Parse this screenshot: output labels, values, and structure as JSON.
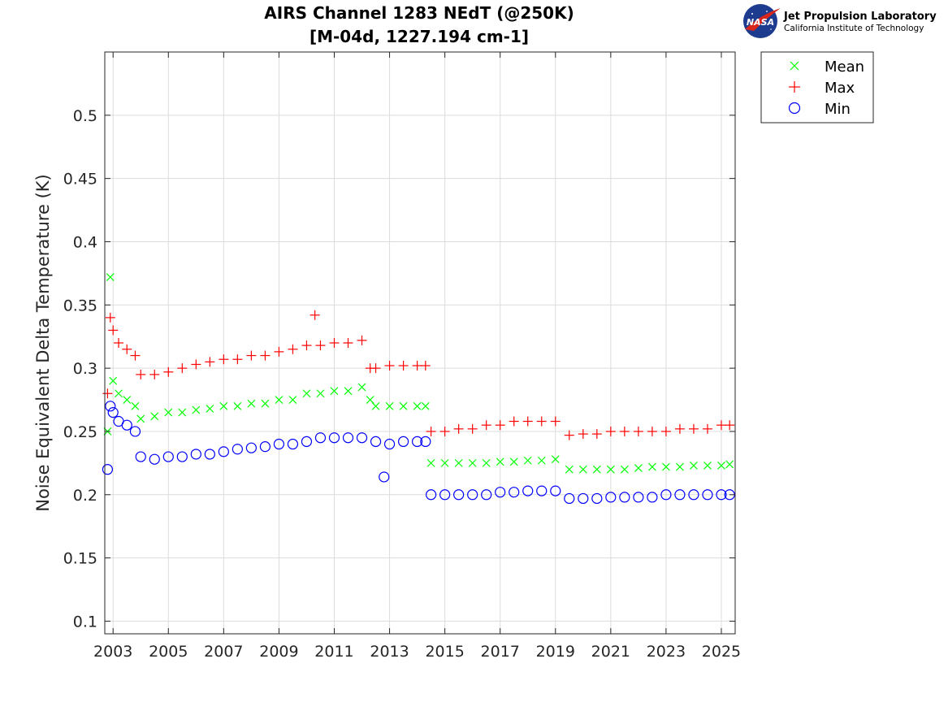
{
  "chart_data": {
    "type": "scatter",
    "title": "AIRS Channel 1283 NEdT (@250K)",
    "subtitle": "[M-04d, 1227.194 cm-1]",
    "xlabel": "",
    "ylabel": "Noise Equivalent Delta Temperature (K)",
    "xlim": [
      2002.7,
      2025.5
    ],
    "ylim": [
      0.09,
      0.55
    ],
    "x_ticks": [
      2003,
      2005,
      2007,
      2009,
      2011,
      2013,
      2015,
      2017,
      2019,
      2021,
      2023,
      2025
    ],
    "x_tick_labels": [
      "2003",
      "2005",
      "2007",
      "2009",
      "2011",
      "2013",
      "2015",
      "2017",
      "2019",
      "2021",
      "2023",
      "2025"
    ],
    "y_ticks": [
      0.1,
      0.15,
      0.2,
      0.25,
      0.3,
      0.35,
      0.4,
      0.45,
      0.5
    ],
    "y_tick_labels": [
      "0.1",
      "0.15",
      "0.2",
      "0.25",
      "0.3",
      "0.35",
      "0.4",
      "0.45",
      "0.5"
    ],
    "grid": true,
    "legend_position": "outside-top-right",
    "series": [
      {
        "name": "Mean",
        "marker": "x",
        "color": "#00ff00",
        "x": [
          2002.8,
          2002.9,
          2003.0,
          2003.2,
          2003.5,
          2003.8,
          2004.0,
          2004.5,
          2005.0,
          2005.5,
          2006.0,
          2006.5,
          2007.0,
          2007.5,
          2008.0,
          2008.5,
          2009.0,
          2009.5,
          2010.0,
          2010.5,
          2011.0,
          2011.5,
          2012.0,
          2012.3,
          2012.5,
          2013.0,
          2013.5,
          2014.0,
          2014.3,
          2014.5,
          2015.0,
          2015.5,
          2016.0,
          2016.5,
          2017.0,
          2017.5,
          2018.0,
          2018.5,
          2019.0,
          2019.5,
          2020.0,
          2020.5,
          2021.0,
          2021.5,
          2022.0,
          2022.5,
          2023.0,
          2023.5,
          2024.0,
          2024.5,
          2025.0,
          2025.3
        ],
        "y": [
          0.25,
          0.372,
          0.29,
          0.28,
          0.275,
          0.27,
          0.26,
          0.262,
          0.265,
          0.265,
          0.267,
          0.268,
          0.27,
          0.27,
          0.272,
          0.272,
          0.275,
          0.275,
          0.28,
          0.28,
          0.282,
          0.282,
          0.285,
          0.275,
          0.27,
          0.27,
          0.27,
          0.27,
          0.27,
          0.225,
          0.225,
          0.225,
          0.225,
          0.225,
          0.226,
          0.226,
          0.227,
          0.227,
          0.228,
          0.22,
          0.22,
          0.22,
          0.22,
          0.22,
          0.221,
          0.222,
          0.222,
          0.222,
          0.223,
          0.223,
          0.223,
          0.224
        ]
      },
      {
        "name": "Max",
        "marker": "+",
        "color": "#ff0000",
        "x": [
          2002.8,
          2002.9,
          2003.0,
          2003.2,
          2003.5,
          2003.8,
          2004.0,
          2004.5,
          2005.0,
          2005.5,
          2006.0,
          2006.5,
          2007.0,
          2007.5,
          2008.0,
          2008.5,
          2009.0,
          2009.5,
          2010.0,
          2010.3,
          2010.5,
          2011.0,
          2011.5,
          2012.0,
          2012.3,
          2012.5,
          2013.0,
          2013.5,
          2014.0,
          2014.3,
          2014.5,
          2015.0,
          2015.5,
          2016.0,
          2016.5,
          2017.0,
          2017.5,
          2018.0,
          2018.5,
          2019.0,
          2019.5,
          2020.0,
          2020.5,
          2021.0,
          2021.5,
          2022.0,
          2022.5,
          2023.0,
          2023.5,
          2024.0,
          2024.5,
          2025.0,
          2025.3
        ],
        "y": [
          0.28,
          0.34,
          0.33,
          0.32,
          0.315,
          0.31,
          0.295,
          0.295,
          0.297,
          0.3,
          0.303,
          0.305,
          0.307,
          0.307,
          0.31,
          0.31,
          0.313,
          0.315,
          0.318,
          0.342,
          0.318,
          0.32,
          0.32,
          0.322,
          0.3,
          0.3,
          0.302,
          0.302,
          0.302,
          0.302,
          0.25,
          0.25,
          0.252,
          0.252,
          0.255,
          0.255,
          0.258,
          0.258,
          0.258,
          0.258,
          0.247,
          0.248,
          0.248,
          0.25,
          0.25,
          0.25,
          0.25,
          0.25,
          0.252,
          0.252,
          0.252,
          0.255,
          0.255
        ]
      },
      {
        "name": "Min",
        "marker": "o",
        "color": "#0000ff",
        "x": [
          2002.8,
          2002.9,
          2003.0,
          2003.2,
          2003.5,
          2003.8,
          2004.0,
          2004.5,
          2005.0,
          2005.5,
          2006.0,
          2006.5,
          2007.0,
          2007.5,
          2008.0,
          2008.5,
          2009.0,
          2009.5,
          2010.0,
          2010.5,
          2011.0,
          2011.5,
          2012.0,
          2012.5,
          2012.8,
          2013.0,
          2013.5,
          2014.0,
          2014.3,
          2014.5,
          2015.0,
          2015.5,
          2016.0,
          2016.5,
          2017.0,
          2017.5,
          2018.0,
          2018.5,
          2019.0,
          2019.5,
          2020.0,
          2020.5,
          2021.0,
          2021.5,
          2022.0,
          2022.5,
          2023.0,
          2023.5,
          2024.0,
          2024.5,
          2025.0,
          2025.3
        ],
        "y": [
          0.22,
          0.27,
          0.265,
          0.258,
          0.255,
          0.25,
          0.23,
          0.228,
          0.23,
          0.23,
          0.232,
          0.232,
          0.234,
          0.236,
          0.237,
          0.238,
          0.24,
          0.24,
          0.242,
          0.245,
          0.245,
          0.245,
          0.245,
          0.242,
          0.214,
          0.24,
          0.242,
          0.242,
          0.242,
          0.2,
          0.2,
          0.2,
          0.2,
          0.2,
          0.202,
          0.202,
          0.203,
          0.203,
          0.203,
          0.197,
          0.197,
          0.197,
          0.198,
          0.198,
          0.198,
          0.198,
          0.2,
          0.2,
          0.2,
          0.2,
          0.2,
          0.2
        ]
      }
    ]
  },
  "legend": {
    "items": [
      {
        "label": "Mean",
        "marker": "x",
        "color": "#00ff00"
      },
      {
        "label": "Max",
        "marker": "+",
        "color": "#ff0000"
      },
      {
        "label": "Min",
        "marker": "o",
        "color": "#0000ff"
      }
    ]
  },
  "logo": {
    "nasa_text": "NASA",
    "org_name": "Jet Propulsion Laboratory",
    "org_sub": "California Institute of Technology"
  }
}
